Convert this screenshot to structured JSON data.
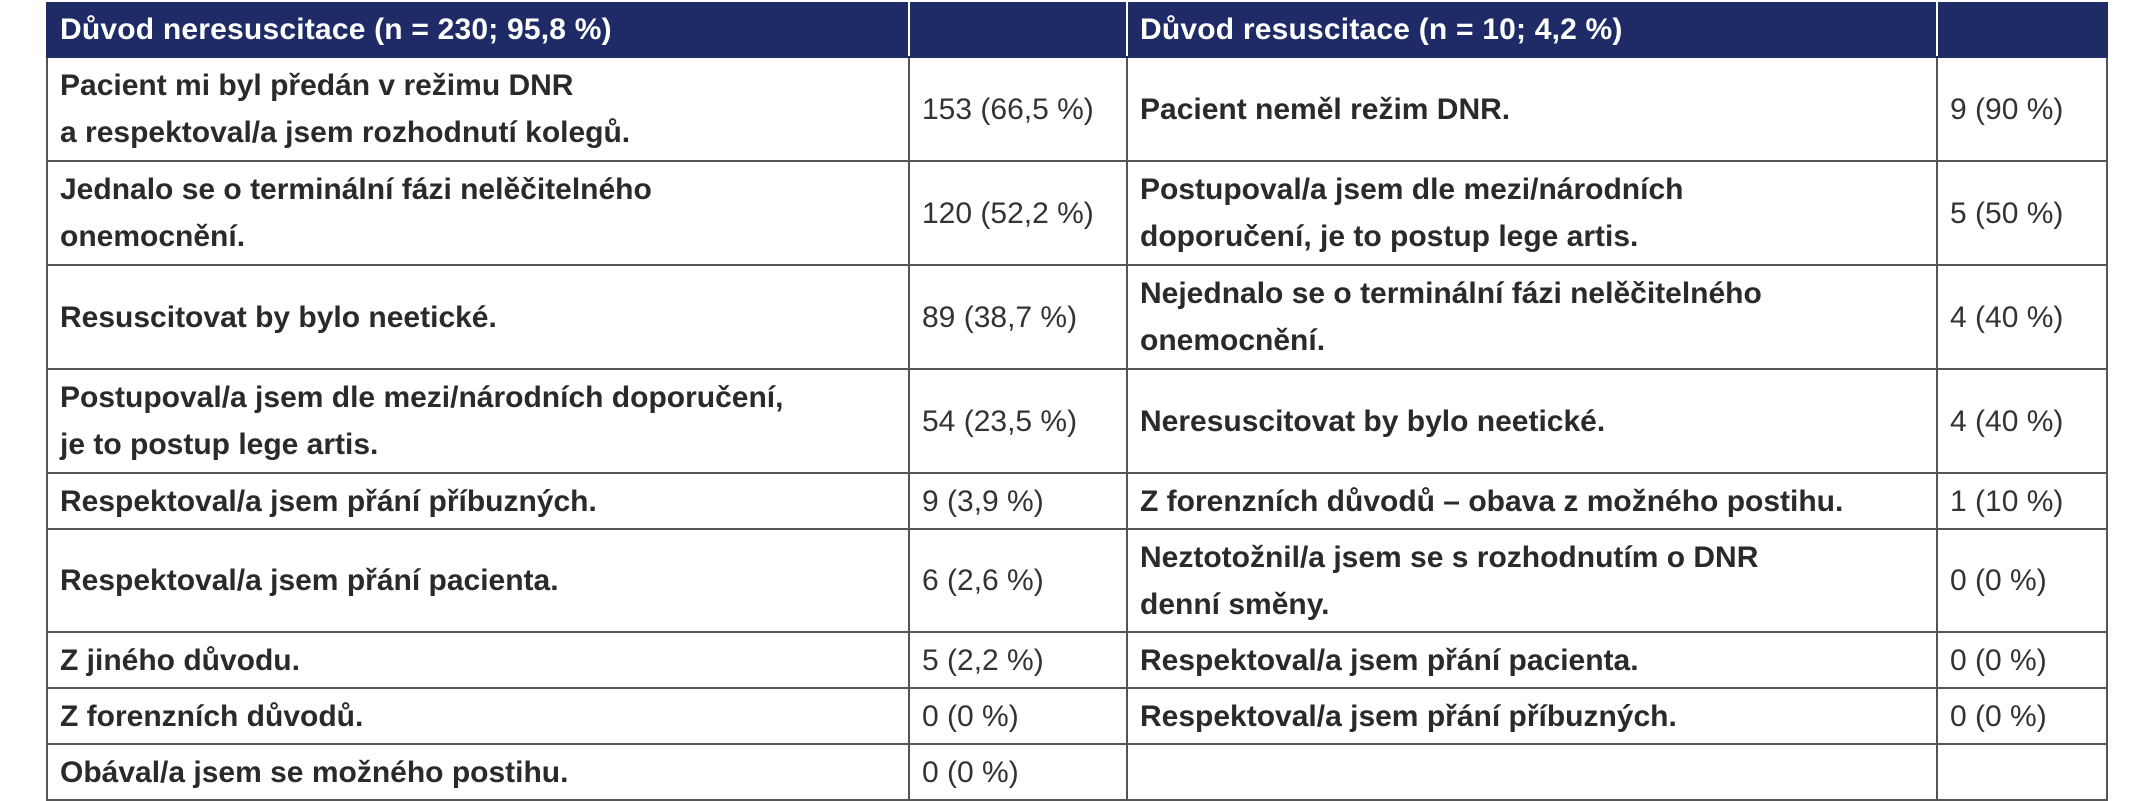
{
  "header": {
    "left_title": "Důvod neresuscitace (n = 230; 95,8 %)",
    "right_title": "Důvod resuscitace (n = 10; 4,2 %)"
  },
  "rows": [
    {
      "left_reason_lines": [
        "Pacient mi byl předán v režimu DNR",
        "a respektoval/a jsem rozhodnutí kolegů."
      ],
      "left_value": "153 (66,5 %)",
      "right_reason_lines": [
        "Pacient neměl režim DNR."
      ],
      "right_value": "9 (90 %)"
    },
    {
      "left_reason_lines": [
        "Jednalo se o terminální fázi nelěčitelného",
        "onemocnění."
      ],
      "left_value": "120 (52,2 %)",
      "right_reason_lines": [
        "Postupoval/a jsem dle mezi/národních",
        "doporučení, je to postup lege artis."
      ],
      "right_value": "5 (50 %)"
    },
    {
      "left_reason_lines": [
        "Resuscitovat by bylo neetické."
      ],
      "left_value": "89 (38,7 %)",
      "right_reason_lines": [
        "Nejednalo se o terminální fázi nelěčitelného",
        "onemocnění."
      ],
      "right_value": "4 (40 %)"
    },
    {
      "left_reason_lines": [
        "Postupoval/a jsem dle mezi/národních doporučení,",
        "je to postup lege artis."
      ],
      "left_value": "54 (23,5 %)",
      "right_reason_lines": [
        "Neresuscitovat by bylo neetické."
      ],
      "right_value": "4 (40 %)"
    },
    {
      "left_reason_lines": [
        "Respektoval/a jsem přání příbuzných."
      ],
      "left_value": "9 (3,9 %)",
      "right_reason_lines": [
        "Z forenzních důvodů – obava z možného postihu."
      ],
      "right_value": "1 (10 %)"
    },
    {
      "left_reason_lines": [
        "Respektoval/a jsem přání pacienta."
      ],
      "left_value": "6 (2,6 %)",
      "right_reason_lines": [
        "Neztotožnil/a jsem se s rozhodnutím o DNR",
        "denní směny."
      ],
      "right_value": "0 (0 %)"
    },
    {
      "left_reason_lines": [
        "Z jiného důvodu."
      ],
      "left_value": "5 (2,2 %)",
      "right_reason_lines": [
        "Respektoval/a jsem přání pacienta."
      ],
      "right_value": "0 (0 %)"
    },
    {
      "left_reason_lines": [
        "Z forenzních důvodů."
      ],
      "left_value": "0 (0 %)",
      "right_reason_lines": [
        "Respektoval/a jsem přání příbuzných."
      ],
      "right_value": "0 (0 %)"
    },
    {
      "left_reason_lines": [
        "Obával/a jsem se možného postihu."
      ],
      "left_value": "0 (0 %)",
      "right_reason_lines": [],
      "right_value": ""
    }
  ]
}
